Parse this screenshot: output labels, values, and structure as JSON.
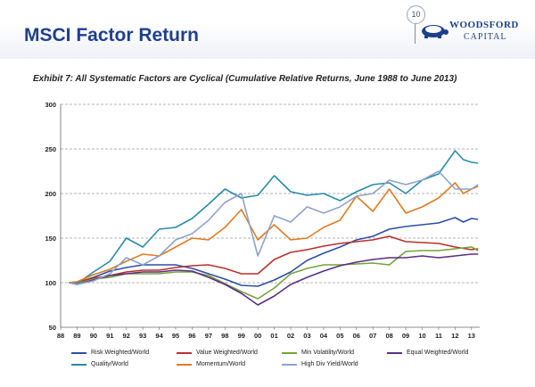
{
  "slide": {
    "title": "MSCI Factor Return",
    "page_number": "10"
  },
  "logo": {
    "name_top": "WOODSFORD",
    "name_bottom": "CAPITAL"
  },
  "chart_data": {
    "type": "line",
    "title": "Exhibit 7: All Systematic Factors are Cyclical (Cumulative Relative Returns, June 1988 to June 2013)",
    "xlabel": "",
    "ylabel": "",
    "x_ticks": [
      "88",
      "89",
      "90",
      "91",
      "92",
      "93",
      "94",
      "95",
      "96",
      "97",
      "98",
      "99",
      "00",
      "01",
      "02",
      "03",
      "04",
      "05",
      "06",
      "07",
      "08",
      "09",
      "10",
      "11",
      "12",
      "13"
    ],
    "xlim": [
      1988,
      2013.5
    ],
    "ylim": [
      50,
      300
    ],
    "y_ticks": [
      50,
      100,
      150,
      200,
      250,
      300
    ],
    "grid": "horizontal dashed",
    "legend_position": "bottom",
    "series": [
      {
        "name": "Risk Weighted/World",
        "color": "#2f4ea3",
        "x": [
          1988.5,
          1989,
          1990,
          1991,
          1992,
          1993,
          1994,
          1995,
          1996,
          1997,
          1998,
          1999,
          2000,
          2001,
          2002,
          2003,
          2004,
          2005,
          2006,
          2007,
          2008,
          2009,
          2010,
          2011,
          2012,
          2012.5,
          2013,
          2013.4
        ],
        "y": [
          100,
          100,
          106,
          113,
          117,
          120,
          120,
          120,
          116,
          110,
          104,
          97,
          96,
          103,
          112,
          125,
          133,
          140,
          148,
          152,
          160,
          163,
          165,
          167,
          173,
          168,
          172,
          171
        ]
      },
      {
        "name": "Value Weighted/World",
        "color": "#b7312c",
        "x": [
          1988.5,
          1989,
          1990,
          1991,
          1992,
          1993,
          1994,
          1995,
          1996,
          1997,
          1998,
          1999,
          2000,
          2001,
          2002,
          2003,
          2004,
          2005,
          2006,
          2007,
          2008,
          2009,
          2010,
          2011,
          2012,
          2013,
          2013.4
        ],
        "y": [
          100,
          101,
          105,
          108,
          112,
          114,
          114,
          117,
          119,
          120,
          116,
          110,
          110,
          126,
          134,
          137,
          141,
          144,
          146,
          148,
          152,
          146,
          145,
          144,
          140,
          137,
          138
        ]
      },
      {
        "name": "Min Volatility/World",
        "color": "#76a33d",
        "x": [
          1988.5,
          1989,
          1990,
          1991,
          1992,
          1993,
          1994,
          1995,
          1996,
          1997,
          1998,
          1999,
          2000,
          2001,
          2002,
          2003,
          2004,
          2005,
          2006,
          2007,
          2008,
          2009,
          2010,
          2011,
          2012,
          2013,
          2013.4
        ],
        "y": [
          100,
          99,
          104,
          106,
          110,
          110,
          110,
          112,
          112,
          108,
          99,
          90,
          82,
          94,
          110,
          116,
          120,
          120,
          121,
          122,
          120,
          135,
          136,
          136,
          138,
          140,
          136
        ]
      },
      {
        "name": "Equal Weighted/World",
        "color": "#5b2e84",
        "x": [
          1988.5,
          1989,
          1990,
          1991,
          1992,
          1993,
          1994,
          1995,
          1996,
          1997,
          1998,
          1999,
          2000,
          2001,
          2002,
          2003,
          2004,
          2005,
          2006,
          2007,
          2008,
          2009,
          2010,
          2011,
          2012,
          2013,
          2013.4
        ],
        "y": [
          100,
          98,
          103,
          108,
          110,
          112,
          112,
          114,
          113,
          106,
          98,
          88,
          75,
          85,
          98,
          106,
          113,
          119,
          123,
          126,
          128,
          128,
          130,
          128,
          130,
          132,
          132
        ]
      },
      {
        "name": "Quality/World",
        "color": "#2b8ba7",
        "x": [
          1988.5,
          1989,
          1990,
          1991,
          1992,
          1993,
          1994,
          1995,
          1996,
          1997,
          1998,
          1999,
          2000,
          2001,
          2002,
          2003,
          2004,
          2005,
          2006,
          2007,
          2008,
          2009,
          2010,
          2011,
          2012,
          2012.5,
          2013,
          2013.4
        ],
        "y": [
          100,
          99,
          112,
          124,
          150,
          140,
          160,
          162,
          172,
          188,
          205,
          195,
          198,
          220,
          202,
          198,
          200,
          192,
          202,
          210,
          212,
          200,
          215,
          222,
          248,
          238,
          235,
          234
        ]
      },
      {
        "name": "Momentum/World",
        "color": "#e07b25",
        "x": [
          1988.5,
          1989,
          1990,
          1991,
          1992,
          1993,
          1994,
          1995,
          1996,
          1997,
          1998,
          1999,
          2000,
          2001,
          2002,
          2003,
          2004,
          2005,
          2006,
          2007,
          2008,
          2009,
          2010,
          2011,
          2012,
          2012.5,
          2013,
          2013.4
        ],
        "y": [
          100,
          101,
          109,
          115,
          124,
          132,
          130,
          140,
          150,
          148,
          162,
          182,
          148,
          165,
          148,
          150,
          162,
          170,
          197,
          180,
          205,
          178,
          185,
          195,
          212,
          200,
          205,
          208
        ]
      },
      {
        "name": "High Div Yield/World",
        "color": "#8ea2cc",
        "x": [
          1988.5,
          1989,
          1990,
          1991,
          1992,
          1993,
          1994,
          1995,
          1996,
          1997,
          1998,
          1999,
          2000,
          2001,
          2002,
          2003,
          2004,
          2005,
          2006,
          2007,
          2008,
          2009,
          2010,
          2011,
          2012,
          2013,
          2013.4
        ],
        "y": [
          100,
          98,
          102,
          110,
          128,
          120,
          130,
          148,
          155,
          170,
          190,
          200,
          130,
          175,
          168,
          185,
          178,
          185,
          197,
          200,
          215,
          210,
          215,
          225,
          205,
          205,
          210
        ]
      }
    ]
  }
}
